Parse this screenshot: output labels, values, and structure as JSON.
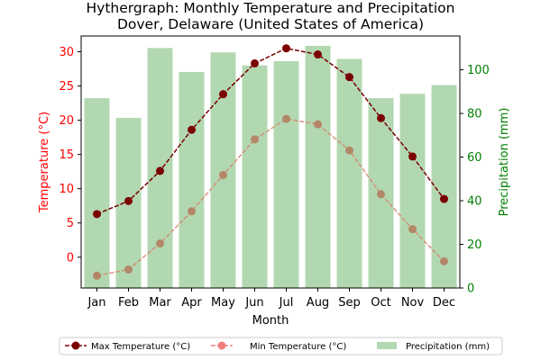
{
  "chart_data": {
    "type": "bar+line",
    "title": "Hythergraph: Monthly Temperature and Precipitation",
    "subtitle": "Dover, Delaware (United States of America)",
    "xlabel": "Month",
    "ylabel_left": "Temperature (°C)",
    "ylabel_right": "Precipitation (mm)",
    "categories": [
      "Jan",
      "Feb",
      "Mar",
      "Apr",
      "May",
      "Jun",
      "Jul",
      "Aug",
      "Sep",
      "Oct",
      "Nov",
      "Dec"
    ],
    "ylim_left": [
      -4.5,
      32.3
    ],
    "ylim_right": [
      0,
      115.5
    ],
    "yticks_left": [
      0,
      5,
      10,
      15,
      20,
      25,
      30
    ],
    "yticks_right": [
      0,
      20,
      40,
      60,
      80,
      100
    ],
    "series": [
      {
        "name": "Max Temperature (°C)",
        "kind": "line",
        "axis": "left",
        "color": "#7b0000",
        "values": [
          6.3,
          8.2,
          12.6,
          18.6,
          23.8,
          28.3,
          30.5,
          29.6,
          26.3,
          20.3,
          14.7,
          8.5
        ]
      },
      {
        "name": "Min Temperature (°C)",
        "kind": "line",
        "axis": "left",
        "color": "#f08080",
        "values": [
          -2.7,
          -1.8,
          2.0,
          6.7,
          12.0,
          17.2,
          20.2,
          19.4,
          15.6,
          9.2,
          4.1,
          -0.6
        ]
      },
      {
        "name": "Precipitation (mm)",
        "kind": "bar",
        "axis": "right",
        "color": "#b2d8b2",
        "values": [
          87,
          78,
          110,
          99,
          108,
          102,
          104,
          111,
          105,
          87,
          89,
          93
        ]
      }
    ],
    "left_axis_color": "#ff0000",
    "right_axis_color": "#008000",
    "grid": false,
    "legend_position": "bottom-center"
  }
}
